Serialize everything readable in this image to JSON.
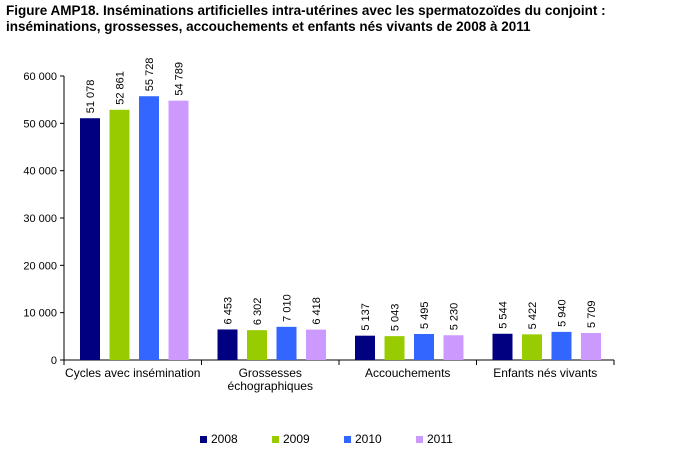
{
  "title_line1": "Figure AMP18. Inséminations artificielles intra-utérines avec les spermatozoïdes du conjoint :",
  "title_line2": "inséminations, grossesses, accouchements et enfants nés vivants de 2008 à 2011",
  "chart_data": {
    "type": "bar",
    "title": "Figure AMP18. Inséminations artificielles intra-utérines avec les spermatozoïdes du conjoint : inséminations, grossesses, accouchements et enfants nés vivants de 2008 à 2011",
    "categories": [
      [
        "Cycles avec insémination"
      ],
      [
        "Grossesses",
        "échographiques"
      ],
      [
        "Accouchements"
      ],
      [
        "Enfants nés vivants"
      ]
    ],
    "series": [
      {
        "name": "2008",
        "color": "#000080",
        "values": [
          51078,
          6453,
          5137,
          5544
        ],
        "labels": [
          "51 078",
          "6 453",
          "5 137",
          "5 544"
        ]
      },
      {
        "name": "2009",
        "color": "#99cc00",
        "values": [
          52861,
          6302,
          5043,
          5422
        ],
        "labels": [
          "52 861",
          "6 302",
          "5 043",
          "5 422"
        ]
      },
      {
        "name": "2010",
        "color": "#3366ff",
        "values": [
          55728,
          7010,
          5495,
          5940
        ],
        "labels": [
          "55 728",
          "7 010",
          "5 495",
          "5 940"
        ]
      },
      {
        "name": "2011",
        "color": "#cc99ff",
        "values": [
          54789,
          6418,
          5230,
          5709
        ],
        "labels": [
          "54 789",
          "6 418",
          "5 230",
          "5 709"
        ]
      }
    ],
    "ylim": [
      0,
      60000
    ],
    "yticks": [
      0,
      10000,
      20000,
      30000,
      40000,
      50000,
      60000
    ],
    "ytick_labels": [
      "0",
      "10 000",
      "20 000",
      "30 000",
      "40 000",
      "50 000",
      "60 000"
    ],
    "xlabel": "",
    "ylabel": "",
    "grid": false,
    "legend_position": "bottom"
  }
}
